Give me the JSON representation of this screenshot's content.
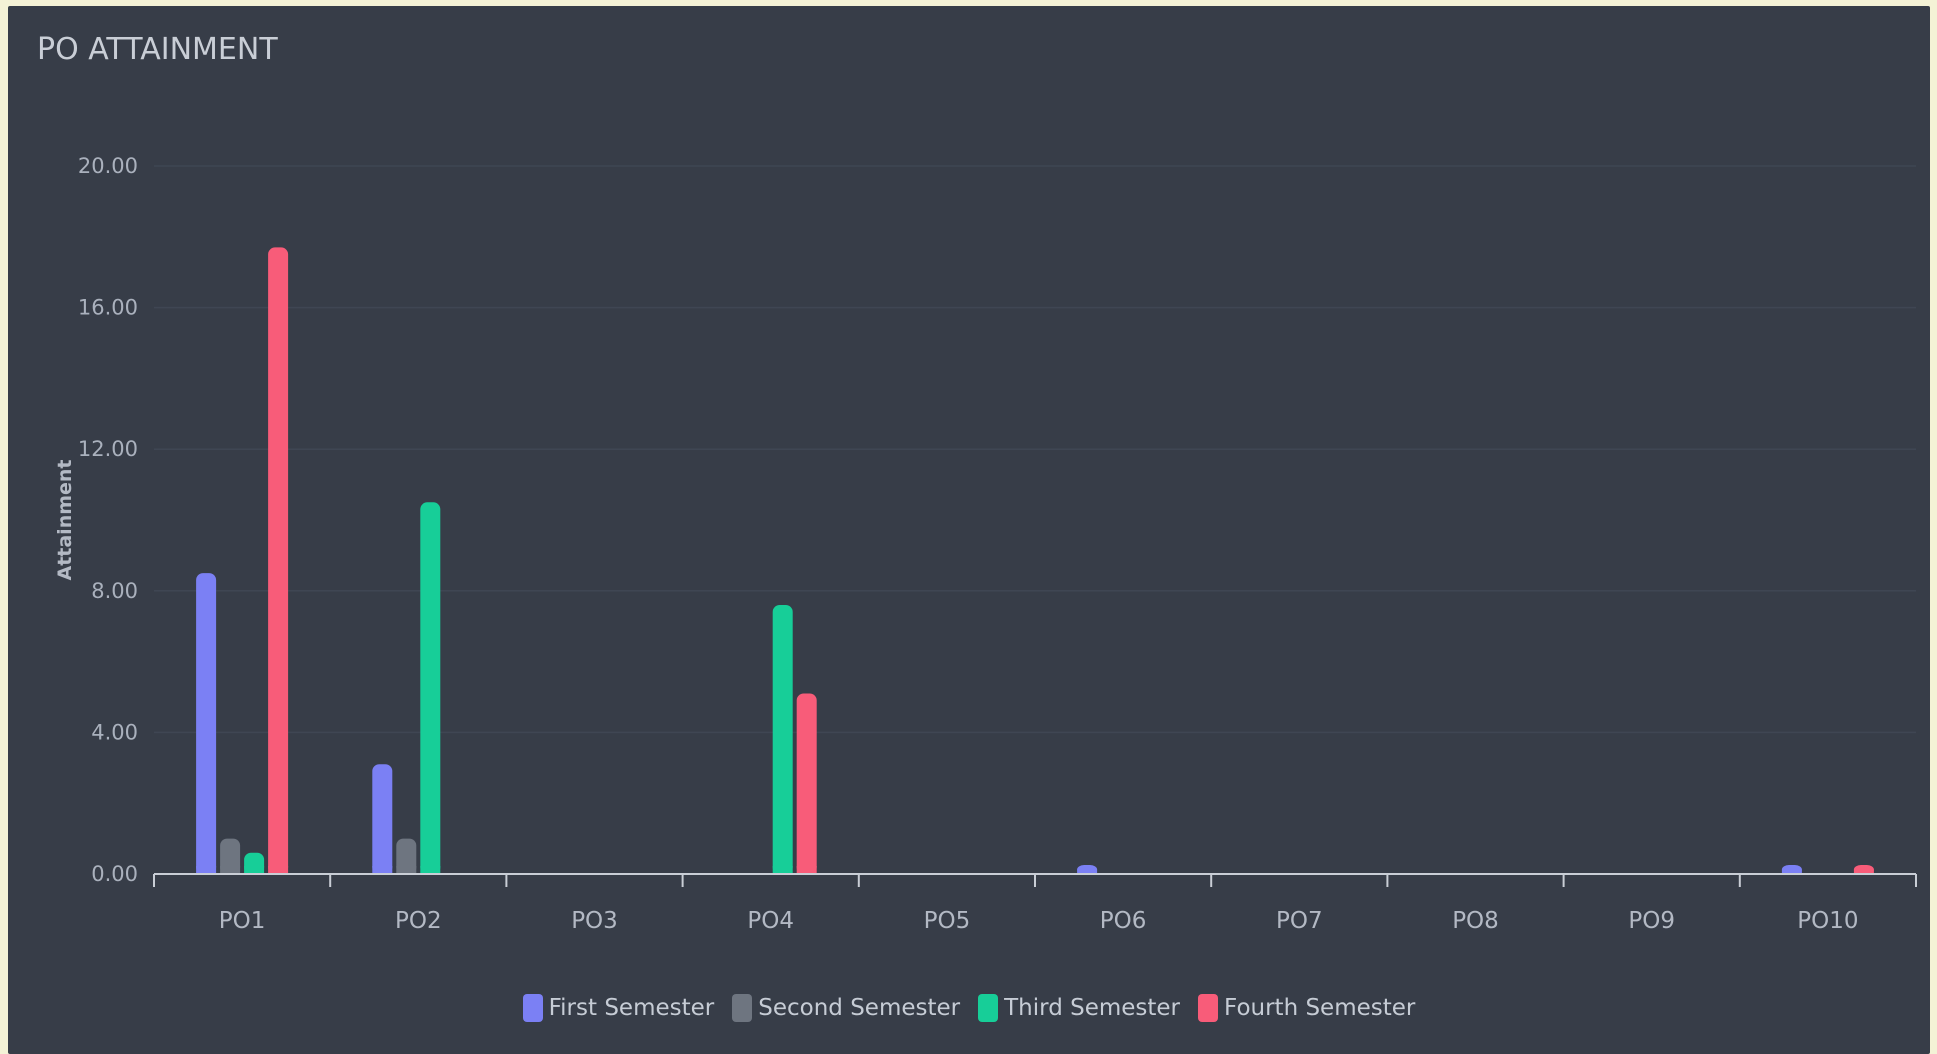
{
  "header": {
    "title": "PO ATTAINMENT"
  },
  "colors": {
    "panel_bg": "#373d48",
    "grid": "#3f4653",
    "axis": "#c9ced6"
  },
  "chart_data": {
    "type": "bar",
    "title": "PO ATTAINMENT",
    "xlabel": "",
    "ylabel": "Attainment",
    "ylim": [
      0,
      20
    ],
    "yticks": [
      "0.00",
      "4.00",
      "8.00",
      "12.00",
      "16.00",
      "20.00"
    ],
    "grid": true,
    "legend_position": "bottom-center",
    "categories": [
      "PO1",
      "PO2",
      "PO3",
      "PO4",
      "PO5",
      "PO6",
      "PO7",
      "PO8",
      "PO9",
      "PO10"
    ],
    "series": [
      {
        "name": "First Semester",
        "color": "#7b80f4",
        "values": [
          8.5,
          3.1,
          0,
          0,
          0,
          0.2,
          0,
          0,
          0,
          0.2
        ]
      },
      {
        "name": "Second Semester",
        "color": "#6e7580",
        "values": [
          1.0,
          1.0,
          0,
          0,
          0,
          0,
          0,
          0,
          0,
          0
        ]
      },
      {
        "name": "Third Semester",
        "color": "#17ce98",
        "values": [
          0.6,
          10.5,
          0,
          7.6,
          0,
          0,
          0,
          0,
          0,
          0
        ]
      },
      {
        "name": "Fourth Semester",
        "color": "#f85c79",
        "values": [
          17.7,
          0,
          0,
          5.1,
          0,
          0,
          0,
          0,
          0,
          0.2
        ]
      }
    ]
  }
}
